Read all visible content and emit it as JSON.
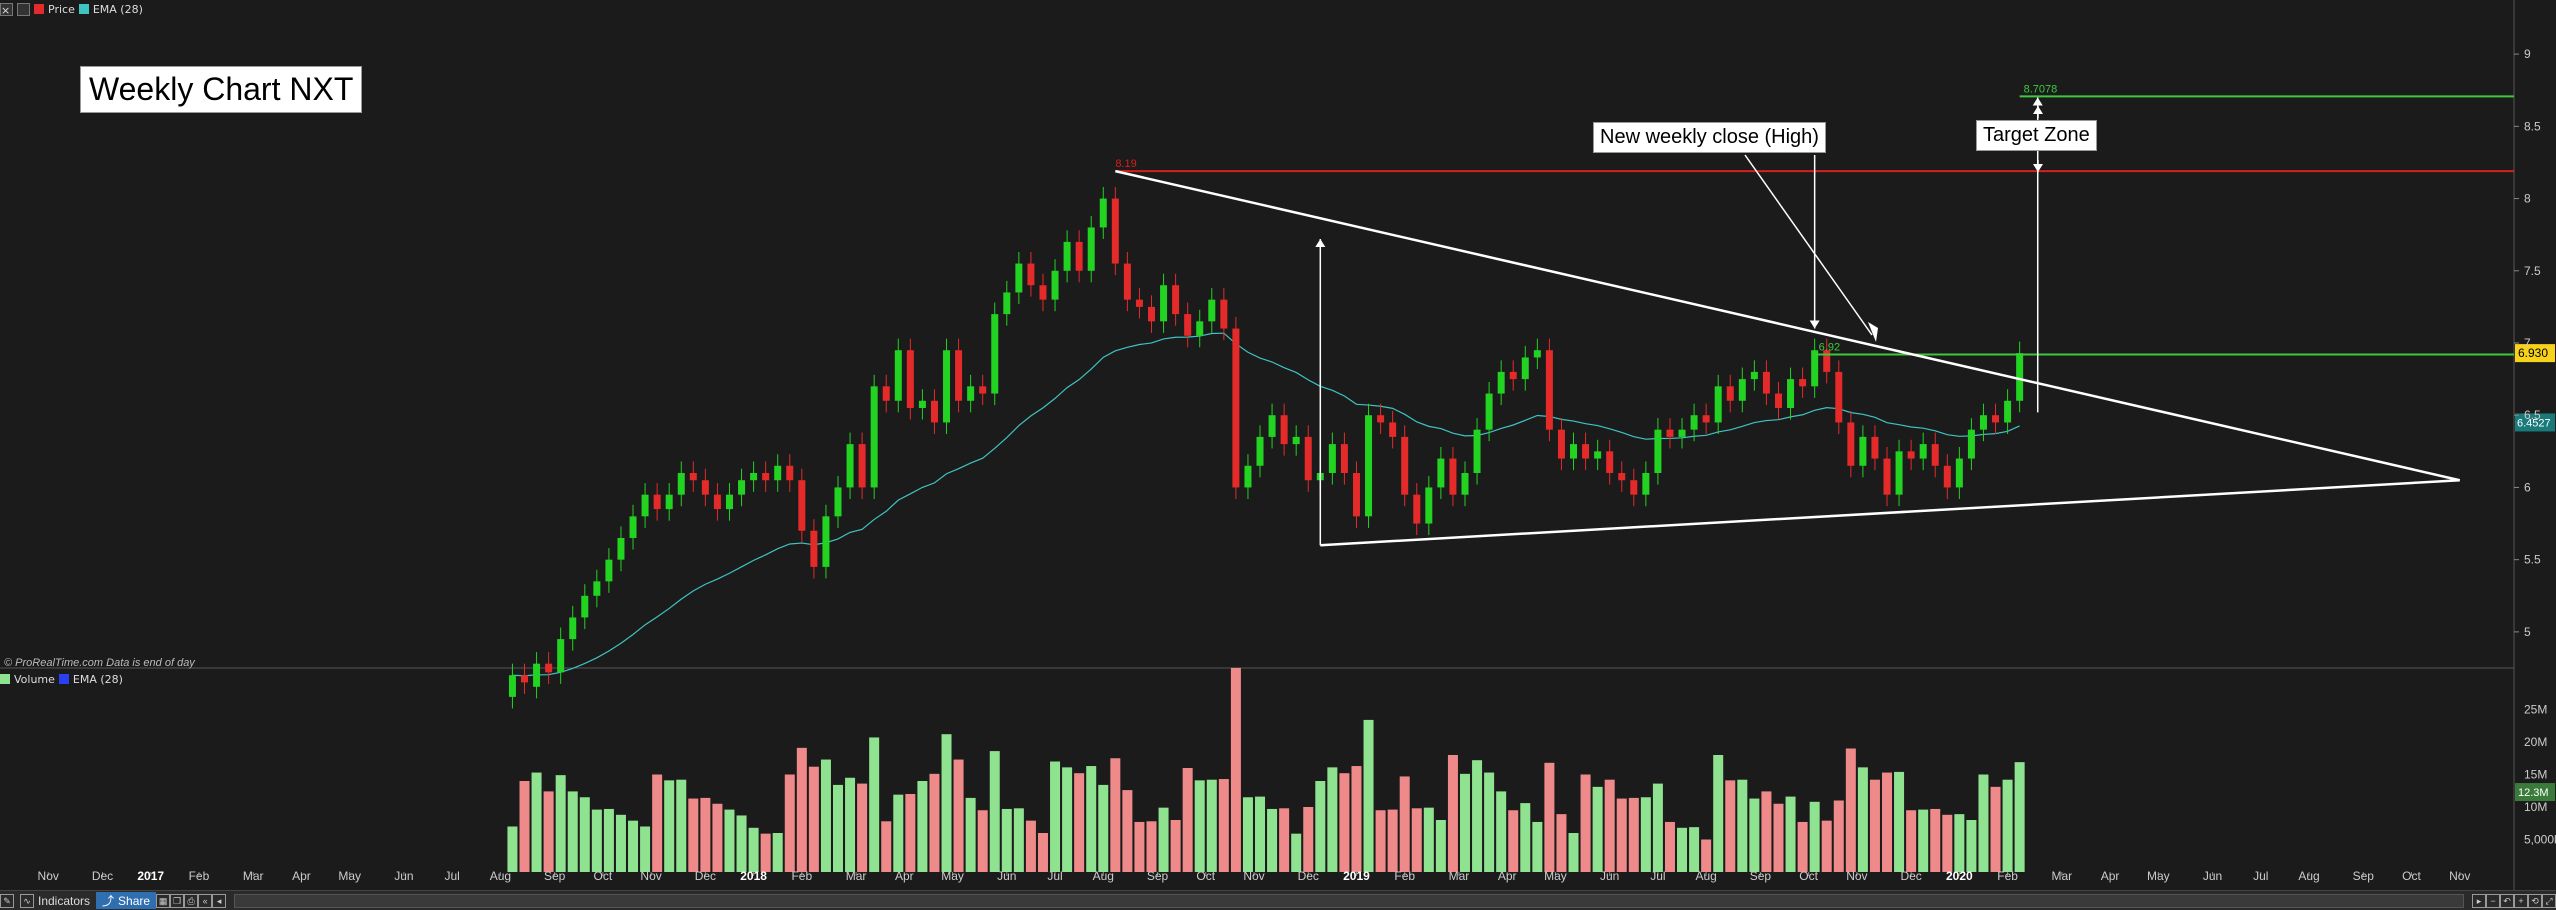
{
  "chart_title": "Weekly Chart NXT",
  "legend": {
    "price_label": "Price",
    "ema_label": "EMA (28)",
    "volume_label": "Volume",
    "vol_ema_label": "EMA (28)"
  },
  "credit": "© ProRealTime.com  Data is end of day",
  "annotations": {
    "new_close": "New weekly close (High)",
    "target_zone": "Target Zone",
    "resistance_label": "8.19",
    "target_label": "8.7078",
    "breakout_label": "6.92",
    "current_price_tag": "6.930",
    "ema_tag": "6.4527",
    "volume_tag": "12.3M"
  },
  "colors": {
    "up": "#22d322",
    "down": "#e52a2a",
    "vol_up": "#8fe28f",
    "vol_down": "#ef8a8a",
    "ema": "#3fc3c3",
    "vol_ema": "#2a3ff0",
    "trend": "#ffffff",
    "resist": "#d81e1e",
    "target": "#3ec83e"
  },
  "toolbar": {
    "indicators_label": "Indicators",
    "share_label": "Share"
  },
  "chart_data": [
    {
      "type": "candlestick",
      "title": "Weekly Chart NXT",
      "ylim": [
        4.75,
        9.25
      ],
      "y_ticks": [
        "5",
        "5.5",
        "6",
        "6.5",
        "7",
        "7.5",
        "8",
        "8.5",
        "9"
      ],
      "y_tick_values": [
        5,
        5.5,
        6,
        6.5,
        7,
        7.5,
        8,
        8.5,
        9
      ],
      "x_ticks": [
        "Nov",
        "Dec",
        "2017",
        "Feb",
        "Mar",
        "Apr",
        "May",
        "Jun",
        "Jul",
        "Aug",
        "Sep",
        "Oct",
        "Nov",
        "Dec",
        "2018",
        "Feb",
        "Mar",
        "Apr",
        "May",
        "Jun",
        "Jul",
        "Aug",
        "Sep",
        "Oct",
        "Nov",
        "Dec",
        "2019",
        "Feb",
        "Mar",
        "Apr",
        "May",
        "Jun",
        "Jul",
        "Aug",
        "Sep",
        "Oct",
        "Nov",
        "Dec",
        "2020",
        "Feb",
        "Mar",
        "Apr",
        "May",
        "Jun",
        "Jul",
        "Aug",
        "Sep",
        "Oct",
        "Nov"
      ],
      "x_tick_values": [
        2016.83,
        2016.92,
        2017.0,
        2017.08,
        2017.17,
        2017.25,
        2017.33,
        2017.42,
        2017.5,
        2017.58,
        2017.67,
        2017.75,
        2017.83,
        2017.92,
        2018.0,
        2018.08,
        2018.17,
        2018.25,
        2018.33,
        2018.42,
        2018.5,
        2018.58,
        2018.67,
        2018.75,
        2018.83,
        2018.92,
        2019.0,
        2019.08,
        2019.17,
        2019.25,
        2019.33,
        2019.42,
        2019.5,
        2019.58,
        2019.67,
        2019.75,
        2019.83,
        2019.92,
        2020.0,
        2020.08,
        2020.17,
        2020.25,
        2020.33,
        2020.42,
        2020.5,
        2020.58,
        2020.67,
        2020.75,
        2020.83
      ],
      "xlim": [
        2016.75,
        2020.92
      ],
      "weeks": [
        {
          "t": 2017.6,
          "o": 4.55,
          "c": 4.7
        },
        {
          "t": 2017.62,
          "o": 4.7,
          "c": 4.65
        },
        {
          "t": 2017.64,
          "o": 4.62,
          "c": 4.78
        },
        {
          "t": 2017.66,
          "o": 4.78,
          "c": 4.72
        },
        {
          "t": 2017.68,
          "o": 4.72,
          "c": 4.95
        },
        {
          "t": 2017.7,
          "o": 4.95,
          "c": 5.1
        },
        {
          "t": 2017.72,
          "o": 5.1,
          "c": 5.25
        },
        {
          "t": 2017.74,
          "o": 5.25,
          "c": 5.35
        },
        {
          "t": 2017.76,
          "o": 5.35,
          "c": 5.5
        },
        {
          "t": 2017.78,
          "o": 5.5,
          "c": 5.65
        },
        {
          "t": 2017.8,
          "o": 5.65,
          "c": 5.8
        },
        {
          "t": 2017.82,
          "o": 5.8,
          "c": 5.95
        },
        {
          "t": 2017.84,
          "o": 5.95,
          "c": 5.85
        },
        {
          "t": 2017.86,
          "o": 5.85,
          "c": 5.95
        },
        {
          "t": 2017.88,
          "o": 5.95,
          "c": 6.1
        },
        {
          "t": 2017.9,
          "o": 6.1,
          "c": 6.05
        },
        {
          "t": 2017.92,
          "o": 6.05,
          "c": 5.95
        },
        {
          "t": 2017.94,
          "o": 5.95,
          "c": 5.85
        },
        {
          "t": 2017.96,
          "o": 5.85,
          "c": 5.95
        },
        {
          "t": 2017.98,
          "o": 5.95,
          "c": 6.05
        },
        {
          "t": 2018.0,
          "o": 6.05,
          "c": 6.1
        },
        {
          "t": 2018.02,
          "o": 6.1,
          "c": 6.05
        },
        {
          "t": 2018.04,
          "o": 6.05,
          "c": 6.15
        },
        {
          "t": 2018.06,
          "o": 6.15,
          "c": 6.05
        },
        {
          "t": 2018.08,
          "o": 6.05,
          "c": 5.7
        },
        {
          "t": 2018.1,
          "o": 5.7,
          "c": 5.45
        },
        {
          "t": 2018.12,
          "o": 5.45,
          "c": 5.8
        },
        {
          "t": 2018.14,
          "o": 5.8,
          "c": 6.0
        },
        {
          "t": 2018.16,
          "o": 6.0,
          "c": 6.3
        },
        {
          "t": 2018.18,
          "o": 6.3,
          "c": 6.0
        },
        {
          "t": 2018.2,
          "o": 6.0,
          "c": 6.7
        },
        {
          "t": 2018.22,
          "o": 6.7,
          "c": 6.6
        },
        {
          "t": 2018.24,
          "o": 6.6,
          "c": 6.95
        },
        {
          "t": 2018.26,
          "o": 6.95,
          "c": 6.55
        },
        {
          "t": 2018.28,
          "o": 6.55,
          "c": 6.6
        },
        {
          "t": 2018.3,
          "o": 6.6,
          "c": 6.45
        },
        {
          "t": 2018.32,
          "o": 6.45,
          "c": 6.95
        },
        {
          "t": 2018.34,
          "o": 6.95,
          "c": 6.6
        },
        {
          "t": 2018.36,
          "o": 6.6,
          "c": 6.7
        },
        {
          "t": 2018.38,
          "o": 6.7,
          "c": 6.65
        },
        {
          "t": 2018.4,
          "o": 6.65,
          "c": 7.2
        },
        {
          "t": 2018.42,
          "o": 7.2,
          "c": 7.35
        },
        {
          "t": 2018.44,
          "o": 7.35,
          "c": 7.55
        },
        {
          "t": 2018.46,
          "o": 7.55,
          "c": 7.4
        },
        {
          "t": 2018.48,
          "o": 7.4,
          "c": 7.3
        },
        {
          "t": 2018.5,
          "o": 7.3,
          "c": 7.5
        },
        {
          "t": 2018.52,
          "o": 7.5,
          "c": 7.7
        },
        {
          "t": 2018.54,
          "o": 7.7,
          "c": 7.5
        },
        {
          "t": 2018.56,
          "o": 7.5,
          "c": 7.8
        },
        {
          "t": 2018.58,
          "o": 7.8,
          "c": 8.0
        },
        {
          "t": 2018.6,
          "o": 8.0,
          "c": 7.55
        },
        {
          "t": 2018.62,
          "o": 7.55,
          "c": 7.3
        },
        {
          "t": 2018.64,
          "o": 7.3,
          "c": 7.25
        },
        {
          "t": 2018.66,
          "o": 7.25,
          "c": 7.15
        },
        {
          "t": 2018.68,
          "o": 7.15,
          "c": 7.4
        },
        {
          "t": 2018.7,
          "o": 7.4,
          "c": 7.2
        },
        {
          "t": 2018.72,
          "o": 7.2,
          "c": 7.05
        },
        {
          "t": 2018.74,
          "o": 7.05,
          "c": 7.15
        },
        {
          "t": 2018.76,
          "o": 7.15,
          "c": 7.3
        },
        {
          "t": 2018.78,
          "o": 7.3,
          "c": 7.1
        },
        {
          "t": 2018.8,
          "o": 7.1,
          "c": 6.0
        },
        {
          "t": 2018.82,
          "o": 6.0,
          "c": 6.15
        },
        {
          "t": 2018.84,
          "o": 6.15,
          "c": 6.35
        },
        {
          "t": 2018.86,
          "o": 6.35,
          "c": 6.5
        },
        {
          "t": 2018.88,
          "o": 6.5,
          "c": 6.3
        },
        {
          "t": 2018.9,
          "o": 6.3,
          "c": 6.35
        },
        {
          "t": 2018.92,
          "o": 6.35,
          "c": 6.05
        },
        {
          "t": 2018.94,
          "o": 6.05,
          "c": 6.1
        },
        {
          "t": 2018.96,
          "o": 6.1,
          "c": 6.3
        },
        {
          "t": 2018.98,
          "o": 6.3,
          "c": 6.1
        },
        {
          "t": 2019.0,
          "o": 6.1,
          "c": 5.8
        },
        {
          "t": 2019.02,
          "o": 5.8,
          "c": 6.5
        },
        {
          "t": 2019.04,
          "o": 6.5,
          "c": 6.45
        },
        {
          "t": 2019.06,
          "o": 6.45,
          "c": 6.35
        },
        {
          "t": 2019.08,
          "o": 6.35,
          "c": 5.95
        },
        {
          "t": 2019.1,
          "o": 5.95,
          "c": 5.75
        },
        {
          "t": 2019.12,
          "o": 5.75,
          "c": 6.0
        },
        {
          "t": 2019.14,
          "o": 6.0,
          "c": 6.2
        },
        {
          "t": 2019.16,
          "o": 6.2,
          "c": 5.95
        },
        {
          "t": 2019.18,
          "o": 5.95,
          "c": 6.1
        },
        {
          "t": 2019.2,
          "o": 6.1,
          "c": 6.4
        },
        {
          "t": 2019.22,
          "o": 6.4,
          "c": 6.65
        },
        {
          "t": 2019.24,
          "o": 6.65,
          "c": 6.8
        },
        {
          "t": 2019.26,
          "o": 6.8,
          "c": 6.75
        },
        {
          "t": 2019.28,
          "o": 6.75,
          "c": 6.9
        },
        {
          "t": 2019.3,
          "o": 6.9,
          "c": 6.95
        },
        {
          "t": 2019.32,
          "o": 6.95,
          "c": 6.4
        },
        {
          "t": 2019.34,
          "o": 6.4,
          "c": 6.2
        },
        {
          "t": 2019.36,
          "o": 6.2,
          "c": 6.3
        },
        {
          "t": 2019.38,
          "o": 6.3,
          "c": 6.2
        },
        {
          "t": 2019.4,
          "o": 6.2,
          "c": 6.25
        },
        {
          "t": 2019.42,
          "o": 6.25,
          "c": 6.1
        },
        {
          "t": 2019.44,
          "o": 6.1,
          "c": 6.05
        },
        {
          "t": 2019.46,
          "o": 6.05,
          "c": 5.95
        },
        {
          "t": 2019.48,
          "o": 5.95,
          "c": 6.1
        },
        {
          "t": 2019.5,
          "o": 6.1,
          "c": 6.4
        },
        {
          "t": 2019.52,
          "o": 6.4,
          "c": 6.35
        },
        {
          "t": 2019.54,
          "o": 6.35,
          "c": 6.4
        },
        {
          "t": 2019.56,
          "o": 6.4,
          "c": 6.5
        },
        {
          "t": 2019.58,
          "o": 6.5,
          "c": 6.45
        },
        {
          "t": 2019.6,
          "o": 6.45,
          "c": 6.7
        },
        {
          "t": 2019.62,
          "o": 6.7,
          "c": 6.6
        },
        {
          "t": 2019.64,
          "o": 6.6,
          "c": 6.75
        },
        {
          "t": 2019.66,
          "o": 6.75,
          "c": 6.8
        },
        {
          "t": 2019.68,
          "o": 6.8,
          "c": 6.65
        },
        {
          "t": 2019.7,
          "o": 6.65,
          "c": 6.55
        },
        {
          "t": 2019.72,
          "o": 6.55,
          "c": 6.75
        },
        {
          "t": 2019.74,
          "o": 6.75,
          "c": 6.7
        },
        {
          "t": 2019.76,
          "o": 6.7,
          "c": 6.95
        },
        {
          "t": 2019.78,
          "o": 6.95,
          "c": 6.8
        },
        {
          "t": 2019.8,
          "o": 6.8,
          "c": 6.45
        },
        {
          "t": 2019.82,
          "o": 6.45,
          "c": 6.15
        },
        {
          "t": 2019.84,
          "o": 6.15,
          "c": 6.35
        },
        {
          "t": 2019.86,
          "o": 6.35,
          "c": 6.2
        },
        {
          "t": 2019.88,
          "o": 6.2,
          "c": 5.95
        },
        {
          "t": 2019.9,
          "o": 5.95,
          "c": 6.25
        },
        {
          "t": 2019.92,
          "o": 6.25,
          "c": 6.2
        },
        {
          "t": 2019.94,
          "o": 6.2,
          "c": 6.3
        },
        {
          "t": 2019.96,
          "o": 6.3,
          "c": 6.15
        },
        {
          "t": 2019.98,
          "o": 6.15,
          "c": 6.0
        },
        {
          "t": 2020.0,
          "o": 6.0,
          "c": 6.2
        },
        {
          "t": 2020.02,
          "o": 6.2,
          "c": 6.4
        },
        {
          "t": 2020.04,
          "o": 6.4,
          "c": 6.5
        },
        {
          "t": 2020.06,
          "o": 6.5,
          "c": 6.45
        },
        {
          "t": 2020.08,
          "o": 6.45,
          "c": 6.6
        },
        {
          "t": 2020.1,
          "o": 6.6,
          "c": 6.93
        }
      ],
      "overlays": {
        "resistance": 8.19,
        "target": 8.7078,
        "breakout": 6.92,
        "triangle_upper": [
          [
            2018.6,
            8.19
          ],
          [
            2020.83,
            6.05
          ]
        ],
        "triangle_lower": [
          [
            2018.94,
            5.6
          ],
          [
            2020.83,
            6.05
          ]
        ]
      }
    },
    {
      "type": "bar",
      "title": "Volume",
      "ylim": [
        0,
        28000000
      ],
      "y_ticks": [
        "5,000k",
        "10M",
        "15M",
        "20M",
        "25M"
      ],
      "y_tick_values": [
        5000000,
        10000000,
        15000000,
        20000000,
        25000000
      ]
    }
  ]
}
